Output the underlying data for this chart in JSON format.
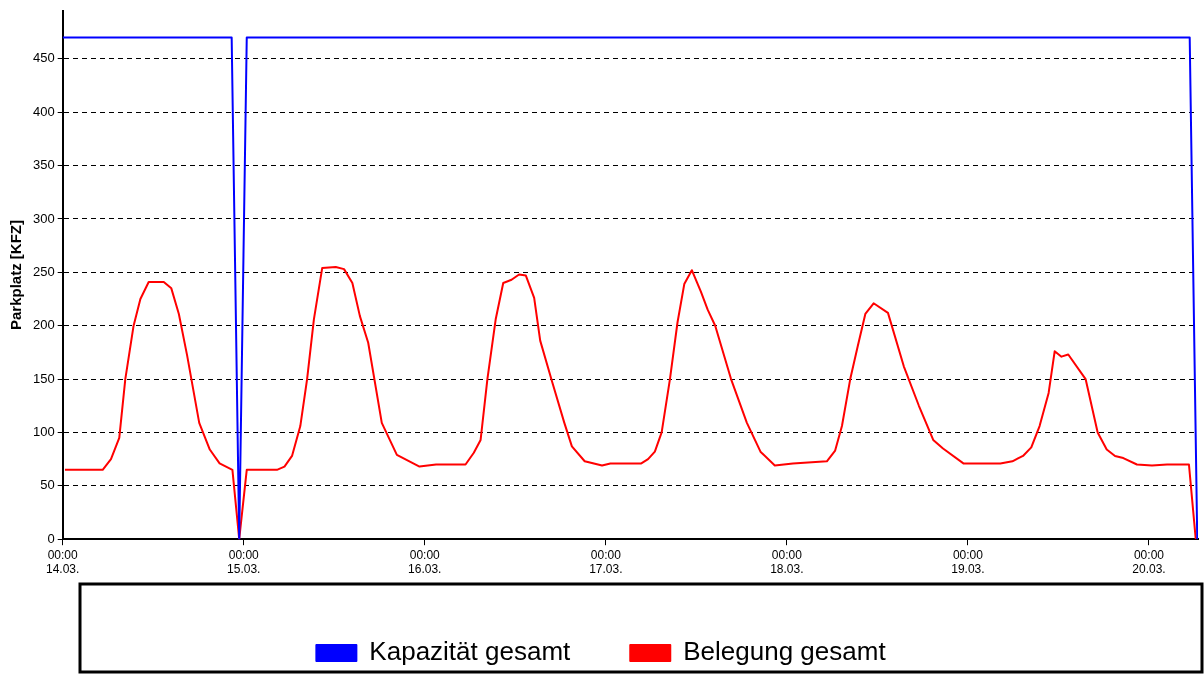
{
  "chart_data": {
    "type": "line",
    "ylabel": "Parkplatz [KFZ]",
    "xlim": [
      "--03-14T00:00",
      "--03-20T06:30"
    ],
    "ylim": [
      0,
      495
    ],
    "xticks": [
      {
        "value": "--03-14T00:00",
        "label": "00:00\n14.03."
      },
      {
        "value": "--03-15T00:00",
        "label": "00:00\n15.03."
      },
      {
        "value": "--03-16T00:00",
        "label": "00:00\n16.03."
      },
      {
        "value": "--03-17T00:00",
        "label": "00:00\n17.03."
      },
      {
        "value": "--03-18T00:00",
        "label": "00:00\n18.03."
      },
      {
        "value": "--03-19T00:00",
        "label": "00:00\n19.03."
      },
      {
        "value": "--03-20T00:00",
        "label": "00:00\n20.03."
      }
    ],
    "yticks": [
      0,
      50,
      100,
      150,
      200,
      250,
      300,
      350,
      400,
      450
    ],
    "grid": "y",
    "legend": "bottom",
    "marker": "none",
    "line_style": "solid",
    "series": [
      {
        "name": "Kapazität gesamt",
        "color": "#0000ff",
        "x": [
          "--03-14T00:00",
          "--03-14T22:24",
          "--03-14T23:24",
          "--03-15T00:24",
          "--03-20T05:24",
          "--03-20T06:24"
        ],
        "values": [
          470,
          470,
          0,
          470,
          470,
          0
        ]
      },
      {
        "name": "Belegung gesamt",
        "color": "#ff0000",
        "x": [
          "--03-14T00:18",
          "--03-14T05:18",
          "--03-14T06:24",
          "--03-14T07:30",
          "--03-14T08:18",
          "--03-14T09:24",
          "--03-14T10:18",
          "--03-14T11:24",
          "--03-14T13:24",
          "--03-14T14:24",
          "--03-14T15:24",
          "--03-14T16:30",
          "--03-14T18:06",
          "--03-14T19:30",
          "--03-14T20:48",
          "--03-14T22:30",
          "--03-14T23:24",
          "--03-15T00:24",
          "--03-15T04:24",
          "--03-15T05:24",
          "--03-15T06:24",
          "--03-15T07:30",
          "--03-15T08:24",
          "--03-15T09:18",
          "--03-15T10:24",
          "--03-15T12:12",
          "--03-15T13:18",
          "--03-15T14:24",
          "--03-15T15:24",
          "--03-15T16:30",
          "--03-15T18:18",
          "--03-15T20:18",
          "--03-15T23:18",
          "--03-16T01:30",
          "--03-16T05:24",
          "--03-16T06:30",
          "--03-16T07:24",
          "--03-16T08:18",
          "--03-16T09:24",
          "--03-16T10:24",
          "--03-16T11:30",
          "--03-16T12:30",
          "--03-16T13:24",
          "--03-16T14:30",
          "--03-16T15:18",
          "--03-16T16:54",
          "--03-16T18:30",
          "--03-16T19:30",
          "--03-16T21:12",
          "--03-16T23:30",
          "--03-17T00:36",
          "--03-17T04:42",
          "--03-17T05:36",
          "--03-17T06:30",
          "--03-17T07:24",
          "--03-17T08:30",
          "--03-17T09:30",
          "--03-17T10:24",
          "--03-17T11:24",
          "--03-17T12:36",
          "--03-17T13:30",
          "--03-17T14:30",
          "--03-17T16:36",
          "--03-17T18:42",
          "--03-17T20:30",
          "--03-17T22:24",
          "--03-18T00:48",
          "--03-18T05:18",
          "--03-18T06:24",
          "--03-18T07:18",
          "--03-18T08:24",
          "--03-18T09:24",
          "--03-18T10:24",
          "--03-18T11:30",
          "--03-18T13:24",
          "--03-18T15:30",
          "--03-18T17:30",
          "--03-18T19:24",
          "--03-18T20:42",
          "--03-18T23:24",
          "--03-19T04:18",
          "--03-19T05:54",
          "--03-19T07:18",
          "--03-19T08:24",
          "--03-19T09:30",
          "--03-19T10:42",
          "--03-19T11:30",
          "--03-19T12:24",
          "--03-19T13:18",
          "--03-19T15:36",
          "--03-19T17:12",
          "--03-19T18:24",
          "--03-19T19:30",
          "--03-19T20:36",
          "--03-19T22:24",
          "--03-20T00:24",
          "--03-20T02:24",
          "--03-20T05:18",
          "--03-20T06:12"
        ],
        "values": [
          65,
          65,
          75,
          95,
          150,
          200,
          225,
          241,
          241,
          235,
          211,
          172,
          109,
          84,
          71,
          65,
          0,
          65,
          65,
          68,
          78,
          106,
          150,
          206,
          254,
          255,
          253,
          240,
          209,
          184,
          109,
          79,
          68,
          70,
          70,
          81,
          93,
          150,
          206,
          240,
          243,
          248,
          247,
          226,
          186,
          147,
          109,
          87,
          73,
          69,
          71,
          71,
          75,
          82,
          100,
          150,
          203,
          239,
          252,
          232,
          215,
          200,
          150,
          109,
          82,
          69,
          71,
          73,
          83,
          106,
          150,
          181,
          211,
          221,
          212,
          162,
          125,
          93,
          85,
          71,
          71,
          73,
          78,
          86,
          106,
          137,
          176,
          171,
          173,
          150,
          100,
          84,
          78,
          76,
          70,
          69,
          70,
          70,
          0
        ]
      }
    ]
  }
}
